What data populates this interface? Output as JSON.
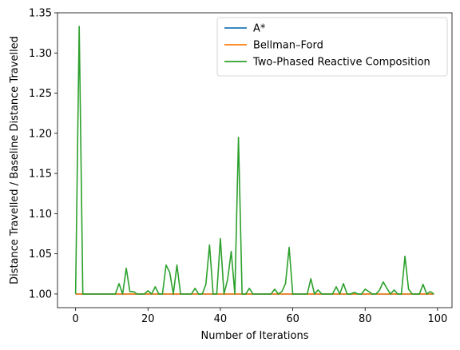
{
  "chart_data": {
    "type": "line",
    "title": "",
    "xlabel": "Number of Iterations",
    "ylabel": "Distance Travelled / Baseline Distance Travelled",
    "xlim": [
      -5,
      104
    ],
    "ylim": [
      0.983,
      1.35
    ],
    "xticks": [
      0,
      20,
      40,
      60,
      80,
      100
    ],
    "yticks": [
      1.0,
      1.05,
      1.1,
      1.15,
      1.2,
      1.25,
      1.3,
      1.35
    ],
    "ytick_labels": [
      "1.00",
      "1.05",
      "1.10",
      "1.15",
      "1.20",
      "1.25",
      "1.30",
      "1.35"
    ],
    "grid": false,
    "legend_position": "top-right",
    "x": [
      0,
      1,
      2,
      3,
      4,
      5,
      6,
      7,
      8,
      9,
      10,
      11,
      12,
      13,
      14,
      15,
      16,
      17,
      18,
      19,
      20,
      21,
      22,
      23,
      24,
      25,
      26,
      27,
      28,
      29,
      30,
      31,
      32,
      33,
      34,
      35,
      36,
      37,
      38,
      39,
      40,
      41,
      42,
      43,
      44,
      45,
      46,
      47,
      48,
      49,
      50,
      51,
      52,
      53,
      54,
      55,
      56,
      57,
      58,
      59,
      60,
      61,
      62,
      63,
      64,
      65,
      66,
      67,
      68,
      69,
      70,
      71,
      72,
      73,
      74,
      75,
      76,
      77,
      78,
      79,
      80,
      81,
      82,
      83,
      84,
      85,
      86,
      87,
      88,
      89,
      90,
      91,
      92,
      93,
      94,
      95,
      96,
      97,
      98,
      99
    ],
    "series": [
      {
        "name": "A*",
        "color": "#1f77b4",
        "values": [
          1,
          1,
          1,
          1,
          1,
          1,
          1,
          1,
          1,
          1,
          1,
          1,
          1,
          1,
          1,
          1,
          1,
          1,
          1,
          1,
          1,
          1,
          1,
          1,
          1,
          1,
          1,
          1,
          1,
          1,
          1,
          1,
          1,
          1,
          1,
          1,
          1,
          1,
          1,
          1,
          1,
          1,
          1,
          1,
          1,
          1,
          1,
          1,
          1,
          1,
          1,
          1,
          1,
          1,
          1,
          1,
          1,
          1,
          1,
          1,
          1,
          1,
          1,
          1,
          1,
          1,
          1,
          1,
          1,
          1,
          1,
          1,
          1,
          1,
          1,
          1,
          1,
          1,
          1,
          1,
          1,
          1,
          1,
          1,
          1,
          1,
          1,
          1,
          1,
          1,
          1,
          1,
          1,
          1,
          1,
          1,
          1,
          1,
          1,
          1
        ]
      },
      {
        "name": "Bellman–Ford",
        "color": "#ff7f0e",
        "values": [
          1,
          1,
          1,
          1,
          1,
          1,
          1,
          1,
          1,
          1,
          1,
          1,
          1,
          1,
          1,
          1,
          1,
          1,
          1,
          1,
          1,
          1,
          1,
          1,
          1,
          1,
          1,
          1,
          1,
          1,
          1,
          1,
          1,
          1,
          1,
          1,
          1,
          1,
          1,
          1,
          1,
          1,
          1,
          1,
          1,
          1,
          1,
          1,
          1,
          1,
          1,
          1,
          1,
          1,
          1,
          1,
          1,
          1,
          1,
          1,
          1,
          1,
          1,
          1,
          1,
          1,
          1,
          1,
          1,
          1,
          1,
          1,
          1,
          1,
          1,
          1,
          1,
          1,
          1,
          1,
          1,
          1,
          1,
          1,
          1,
          1,
          1,
          1,
          1,
          1,
          1,
          1,
          1,
          1,
          1,
          1,
          1,
          1,
          1,
          1
        ]
      },
      {
        "name": "Two-Phased Reactive Composition",
        "color": "#2ca02c",
        "values": [
          1.0,
          1.333,
          1.0,
          1.0,
          1.0,
          1.0,
          1.0,
          1.0,
          1.0,
          1.0,
          1.0,
          1.0,
          1.013,
          1.0,
          1.032,
          1.003,
          1.003,
          1.0,
          1.0,
          1.0,
          1.004,
          1.0,
          1.009,
          1.0,
          1.0,
          1.036,
          1.027,
          1.0,
          1.036,
          1.0,
          1.0,
          1.0,
          1.0,
          1.007,
          1.0,
          1.0,
          1.012,
          1.061,
          1.0,
          1.0,
          1.069,
          1.0,
          1.018,
          1.053,
          1.0,
          1.195,
          1.0,
          1.0,
          1.007,
          1.0,
          1.0,
          1.0,
          1.0,
          1.0,
          1.0,
          1.006,
          1.0,
          1.003,
          1.013,
          1.058,
          1.0,
          1.0,
          1.0,
          1.0,
          1.0,
          1.019,
          1.0,
          1.005,
          1.0,
          1.0,
          1.0,
          1.0,
          1.009,
          1.0,
          1.013,
          1.0,
          1.0,
          1.002,
          1.0,
          1.0,
          1.006,
          1.003,
          1.0,
          1.0,
          1.005,
          1.015,
          1.007,
          1.0,
          1.005,
          1.0,
          1.0,
          1.047,
          1.006,
          1.0,
          1.0,
          1.0,
          1.012,
          1.0,
          1.003,
          1.0
        ]
      }
    ]
  }
}
